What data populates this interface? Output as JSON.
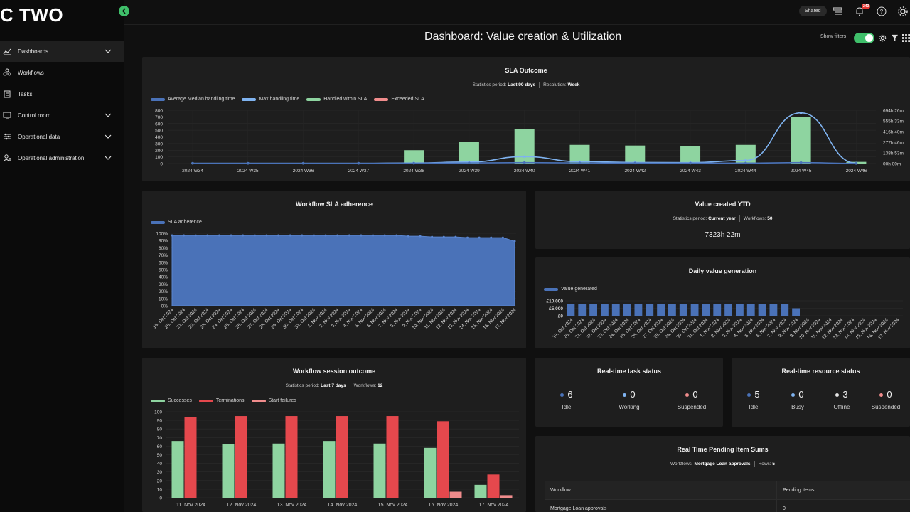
{
  "app": {
    "logo": "C TWO"
  },
  "sidebar": {
    "items": [
      {
        "label": "Dashboards",
        "icon": "line-chart-icon",
        "expandable": true,
        "active": true
      },
      {
        "label": "Workflows",
        "icon": "workflow-icon",
        "expandable": false
      },
      {
        "label": "Tasks",
        "icon": "clipboard-icon",
        "expandable": false
      },
      {
        "label": "Control room",
        "icon": "monitor-icon",
        "expandable": true
      },
      {
        "label": "Operational data",
        "icon": "sliders-icon",
        "expandable": true
      },
      {
        "label": "Operational administration",
        "icon": "user-gear-icon",
        "expandable": true
      }
    ]
  },
  "topbar": {
    "shared": "Shared",
    "notifications_badge": "243"
  },
  "page": {
    "title": "Dashboard: Value creation & Utilization",
    "show_filters": "Show filters",
    "filters_on": true
  },
  "sla_outcome": {
    "title": "SLA Outcome",
    "stat1_label": "Statistics period:",
    "stat1_value": "Last 90 days",
    "stat2_label": "Resolution:",
    "stat2_value": "Week",
    "legend": [
      {
        "name": "Average Median handling time",
        "color": "#4a72b8"
      },
      {
        "name": "Max handling time",
        "color": "#7fb3f0"
      },
      {
        "name": "Handled within SLA",
        "color": "#8ed4a0"
      },
      {
        "name": "Exceeded SLA",
        "color": "#f08c8c"
      }
    ]
  },
  "sla_adherence": {
    "title": "Workflow SLA adherence",
    "legend": [
      {
        "name": "SLA adherence",
        "color": "#4a72b8"
      }
    ]
  },
  "value_ytd": {
    "title": "Value created YTD",
    "stat1_label": "Statistics period:",
    "stat1_value": "Current year",
    "stat2_label": "Workflows:",
    "stat2_value": "50",
    "value": "7323h 22m"
  },
  "daily_value": {
    "title": "Daily value generation",
    "legend": [
      {
        "name": "Value generated",
        "color": "#4a72b8"
      }
    ]
  },
  "session_outcome": {
    "title": "Workflow session outcome",
    "stat1_label": "Statistics period:",
    "stat1_value": "Last 7 days",
    "stat2_label": "Workflows:",
    "stat2_value": "12",
    "legend": [
      {
        "name": "Successes",
        "color": "#8ed4a0"
      },
      {
        "name": "Terminations",
        "color": "#e5484d"
      },
      {
        "name": "Start failures",
        "color": "#f08c8c"
      }
    ]
  },
  "task_status": {
    "title": "Real-time task status",
    "items": [
      {
        "value": "6",
        "label": "Idle",
        "color": "#4a72b8"
      },
      {
        "value": "0",
        "label": "Working",
        "color": "#7fb3f0"
      },
      {
        "value": "0",
        "label": "Suspended",
        "color": "#f08c8c"
      }
    ]
  },
  "resource_status": {
    "title": "Real-time resource status",
    "items": [
      {
        "value": "5",
        "label": "Idle",
        "color": "#4a72b8"
      },
      {
        "value": "0",
        "label": "Busy",
        "color": "#7fb3f0"
      },
      {
        "value": "3",
        "label": "Offline",
        "color": "#e6e6e6"
      },
      {
        "value": "0",
        "label": "Suspended",
        "color": "#f08c8c"
      }
    ]
  },
  "pending_sums": {
    "title": "Real Time Pending Item Sums",
    "stat1_label": "Workflows:",
    "stat1_value": "Mortgage Loan approvals",
    "stat2_label": "Rows:",
    "stat2_value": "5",
    "columns": [
      "Workflow",
      "Pending items"
    ],
    "rows": [
      [
        "Mortgage Loan approvals",
        "0"
      ]
    ]
  },
  "chart_data": [
    {
      "id": "sla_outcome",
      "type": "bar",
      "categories": [
        "2024 W34",
        "2024 W35",
        "2024 W36",
        "2024 W37",
        "2024 W38",
        "2024 W39",
        "2024 W40",
        "2024 W41",
        "2024 W42",
        "2024 W43",
        "2024 W44",
        "2024 W45",
        "2024 W46"
      ],
      "left_ticks": [
        "0",
        "100",
        "200",
        "300",
        "400",
        "500",
        "600",
        "700",
        "800"
      ],
      "ylim": [
        0,
        800
      ],
      "right_ticks": [
        "00h 00m",
        "138h 53m",
        "277h 46m",
        "416h 40m",
        "555h 33m",
        "694h 26m"
      ],
      "right_ylim": [
        0,
        694.4
      ],
      "series": [
        {
          "name": "Handled within SLA",
          "values": [
            0,
            0,
            0,
            0,
            200,
            330,
            520,
            280,
            270,
            260,
            280,
            700,
            25
          ]
        },
        {
          "name": "Exceeded SLA",
          "values": [
            0,
            0,
            0,
            0,
            0,
            0,
            0,
            0,
            0,
            0,
            0,
            0,
            0
          ]
        },
        {
          "name": "Average Median handling time",
          "values": [
            3,
            3,
            3,
            3,
            4,
            8,
            12,
            8,
            6,
            5,
            6,
            12,
            2
          ]
        },
        {
          "name": "Max handling time",
          "values": [
            3,
            3,
            3,
            3,
            8,
            20,
            90,
            25,
            15,
            12,
            40,
            660,
            5
          ]
        }
      ]
    },
    {
      "id": "sla_adherence",
      "type": "area",
      "categories": [
        "19. Oct 2024",
        "20. Oct 2024",
        "21. Oct 2024",
        "22. Oct 2024",
        "23. Oct 2024",
        "24. Oct 2024",
        "25. Oct 2024",
        "26. Oct 2024",
        "27. Oct 2024",
        "28. Oct 2024",
        "29. Oct 2024",
        "30. Oct 2024",
        "31. Oct 2024",
        "1. Nov 2024",
        "2. Nov 2024",
        "3. Nov 2024",
        "4. Nov 2024",
        "5. Nov 2024",
        "6. Nov 2024",
        "7. Nov 2024",
        "8. Nov 2024",
        "9. Nov 2024",
        "10. Nov 2024",
        "11. Nov 2024",
        "12. Nov 2024",
        "13. Nov 2024",
        "14. Nov 2024",
        "15. Nov 2024",
        "16. Nov 2024",
        "17. Nov 2024"
      ],
      "ticks": [
        "0%",
        "10%",
        "20%",
        "30%",
        "40%",
        "50%",
        "60%",
        "70%",
        "80%",
        "90%",
        "100%"
      ],
      "ylim": [
        0,
        100
      ],
      "series": [
        {
          "name": "SLA adherence",
          "values": [
            97,
            97,
            97,
            97,
            97,
            97,
            97,
            97,
            97,
            97,
            97,
            97,
            97,
            97,
            97,
            97,
            97,
            97,
            97,
            97,
            96,
            96,
            95,
            95,
            95,
            94,
            94,
            94,
            94,
            89
          ]
        }
      ]
    },
    {
      "id": "daily_value",
      "type": "bar",
      "categories": [
        "19. Oct 2024",
        "20. Oct 2024",
        "21. Oct 2024",
        "22. Oct 2024",
        "23. Oct 2024",
        "24. Oct 2024",
        "25. Oct 2024",
        "26. Oct 2024",
        "27. Oct 2024",
        "28. Oct 2024",
        "29. Oct 2024",
        "30. Oct 2024",
        "31. Oct 2024",
        "1. Nov 2024",
        "2. Nov 2024",
        "3. Nov 2024",
        "4. Nov 2024",
        "5. Nov 2024",
        "6. Nov 2024",
        "7. Nov 2024",
        "8. Nov 2024",
        "9. Nov 2024",
        "10. Nov 2024",
        "11. Nov 2024",
        "12. Nov 2024",
        "13. Nov 2024",
        "14. Nov 2024",
        "15. Nov 2024",
        "16. Nov 2024",
        "17. Nov 2024"
      ],
      "ticks": [
        "£0",
        "£5,000",
        "£10,000"
      ],
      "ylim": [
        0,
        10000
      ],
      "series": [
        {
          "name": "Value generated",
          "values": [
            7800,
            7800,
            7800,
            7800,
            7800,
            7800,
            7800,
            7800,
            7800,
            7800,
            7800,
            7800,
            7800,
            7800,
            7800,
            7800,
            7800,
            7800,
            7800,
            7800,
            5000,
            0,
            0,
            0,
            0,
            0,
            0,
            0,
            0,
            0
          ]
        }
      ]
    },
    {
      "id": "session_outcome",
      "type": "bar",
      "categories": [
        "11. Nov 2024",
        "12. Nov 2024",
        "13. Nov 2024",
        "14. Nov 2024",
        "15. Nov 2024",
        "16. Nov 2024",
        "17. Nov 2024"
      ],
      "ticks": [
        "0",
        "10",
        "20",
        "30",
        "40",
        "50",
        "60",
        "70",
        "80",
        "90",
        "100"
      ],
      "ylim": [
        0,
        100
      ],
      "series": [
        {
          "name": "Successes",
          "values": [
            66,
            62,
            63,
            66,
            63,
            58,
            15
          ]
        },
        {
          "name": "Terminations",
          "values": [
            94,
            95,
            95,
            95,
            95,
            89,
            27
          ]
        },
        {
          "name": "Start failures",
          "values": [
            0,
            0,
            0,
            0,
            0,
            7,
            3
          ]
        }
      ]
    }
  ]
}
